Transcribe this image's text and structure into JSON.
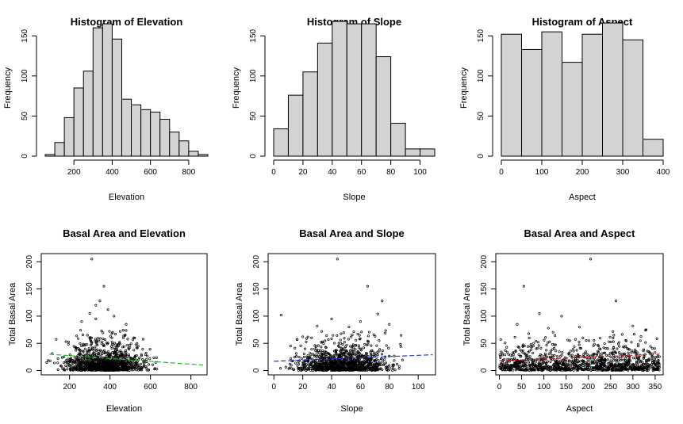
{
  "chart_data": [
    {
      "type": "bar",
      "title": "Histogram of Elevation",
      "xlabel": "Elevation",
      "ylabel": "Frequency",
      "bin_width": 50,
      "bins": [
        50,
        100,
        150,
        200,
        250,
        300,
        350,
        400,
        450,
        500,
        550,
        600,
        650,
        700,
        750,
        800,
        850
      ],
      "values": [
        2,
        17,
        48,
        85,
        106,
        160,
        165,
        146,
        71,
        64,
        58,
        55,
        46,
        30,
        19,
        6,
        2
      ],
      "xlim": [
        50,
        900
      ],
      "xticks": [
        200,
        400,
        600,
        800
      ],
      "ylim": [
        0,
        170
      ],
      "yticks": [
        0,
        50,
        100,
        150
      ],
      "fill": "#d3d3d3"
    },
    {
      "type": "bar",
      "title": "Histogram of Slope",
      "xlabel": "Slope",
      "ylabel": "Frequency",
      "bin_width": 10,
      "bins": [
        0,
        10,
        20,
        30,
        40,
        50,
        60,
        70,
        80,
        90,
        100
      ],
      "values": [
        34,
        76,
        105,
        141,
        168,
        165,
        165,
        124,
        41,
        9,
        9
      ],
      "xlim": [
        0,
        110
      ],
      "xticks": [
        0,
        20,
        40,
        60,
        80,
        100
      ],
      "ylim": [
        0,
        170
      ],
      "yticks": [
        0,
        50,
        100,
        150
      ],
      "fill": "#d3d3d3"
    },
    {
      "type": "bar",
      "title": "Histogram of Aspect",
      "xlabel": "Aspect",
      "ylabel": "Frequency",
      "bin_width": 50,
      "bins": [
        0,
        50,
        100,
        150,
        200,
        250,
        300,
        350
      ],
      "values": [
        152,
        133,
        155,
        117,
        152,
        166,
        145,
        21
      ],
      "xlim": [
        0,
        400
      ],
      "xticks": [
        0,
        100,
        200,
        300,
        400
      ],
      "ylim": [
        0,
        170
      ],
      "yticks": [
        0,
        50,
        100,
        150
      ],
      "fill": "#d3d3d3"
    },
    {
      "type": "scatter",
      "title": "Basal Area and Elevation",
      "xlabel": "Elevation",
      "ylabel": "Total Basal Area",
      "xlim": [
        60,
        880
      ],
      "xticks": [
        200,
        400,
        600,
        800
      ],
      "ylim": [
        -8,
        215
      ],
      "yticks": [
        0,
        50,
        100,
        150,
        200
      ],
      "generator": {
        "n": 1100,
        "seed": 11,
        "mean": 370,
        "sd": 130,
        "min": 80,
        "max": 860
      },
      "outliers": [
        [
          310,
          205
        ],
        [
          370,
          155
        ],
        [
          350,
          128
        ],
        [
          330,
          120
        ],
        [
          390,
          112
        ],
        [
          300,
          105
        ],
        [
          420,
          100
        ],
        [
          330,
          95
        ],
        [
          260,
          90
        ],
        [
          480,
          85
        ]
      ],
      "trend": {
        "x": [
          100,
          860
        ],
        "y": [
          30,
          10
        ],
        "color": "#22bb22"
      }
    },
    {
      "type": "scatter",
      "title": "Basal Area and Slope",
      "xlabel": "Slope",
      "ylabel": "Total Basal Area",
      "xlim": [
        -4,
        112
      ],
      "xticks": [
        0,
        20,
        40,
        60,
        80,
        100
      ],
      "ylim": [
        -8,
        215
      ],
      "yticks": [
        0,
        50,
        100,
        150,
        200
      ],
      "generator": {
        "n": 1100,
        "seed": 23,
        "mean": 48,
        "sd": 22,
        "min": 0,
        "max": 110
      },
      "outliers": [
        [
          44,
          205
        ],
        [
          65,
          155
        ],
        [
          75,
          128
        ],
        [
          72,
          104
        ],
        [
          5,
          102
        ],
        [
          40,
          95
        ],
        [
          60,
          90
        ],
        [
          80,
          85
        ],
        [
          30,
          82
        ],
        [
          52,
          80
        ]
      ],
      "trend": {
        "x": [
          0,
          110
        ],
        "y": [
          17,
          29
        ],
        "color": "#2233cc"
      }
    },
    {
      "type": "scatter",
      "title": "Basal Area and Aspect",
      "xlabel": "Aspect",
      "ylabel": "Total Basal Area",
      "xlim": [
        -8,
        368
      ],
      "xticks": [
        0,
        50,
        100,
        150,
        200,
        250,
        300,
        350
      ],
      "ylim": [
        -8,
        215
      ],
      "yticks": [
        0,
        50,
        100,
        150,
        200
      ],
      "generator": {
        "n": 1100,
        "seed": 37,
        "mean": 180,
        "sd": 200,
        "min": 0,
        "max": 360
      },
      "outliers": [
        [
          205,
          205
        ],
        [
          55,
          155
        ],
        [
          262,
          128
        ],
        [
          90,
          105
        ],
        [
          140,
          100
        ],
        [
          40,
          85
        ],
        [
          300,
          82
        ],
        [
          180,
          80
        ],
        [
          110,
          78
        ],
        [
          330,
          75
        ]
      ],
      "trend": {
        "x": [
          0,
          360
        ],
        "y": [
          18,
          30
        ],
        "color": "#cc2222"
      }
    }
  ]
}
